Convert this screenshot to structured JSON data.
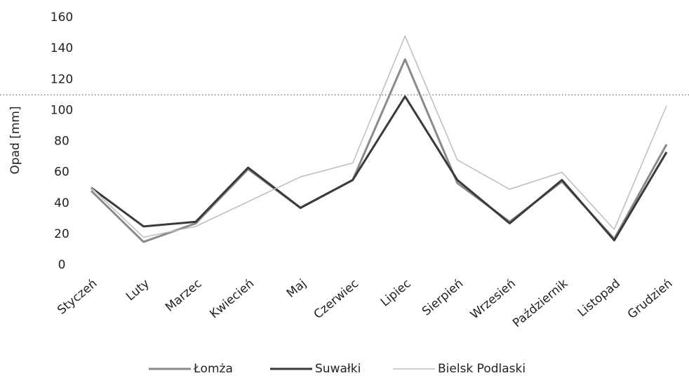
{
  "chart_data": {
    "type": "line",
    "y_label": "Opad [mm]",
    "categories": [
      "Styczeń",
      "Luty",
      "Marzec",
      "Kwiecień",
      "Maj",
      "Czerwiec",
      "Lipiec",
      "Sierpień",
      "Wrzesień",
      "Październik",
      "Listopad",
      "Grudzień"
    ],
    "series": [
      {
        "name": "Łomża",
        "color": "#8a8a8a",
        "values": [
          48,
          15,
          27,
          62,
          37,
          55,
          133,
          53,
          28,
          54,
          17,
          78
        ]
      },
      {
        "name": "Suwałki",
        "color": "#3a3a3a",
        "values": [
          50,
          25,
          28,
          63,
          37,
          55,
          109,
          55,
          27,
          55,
          16,
          73
        ]
      },
      {
        "name": "Bielsk Podlaski",
        "color": "#bdbdbd",
        "values": [
          50,
          18,
          25,
          41,
          57,
          66,
          148,
          68,
          49,
          60,
          23,
          103
        ]
      }
    ],
    "reference_line": 110,
    "ylim": [
      0,
      160
    ],
    "yticks": [
      0,
      20,
      40,
      60,
      80,
      100,
      120,
      140,
      160
    ],
    "legend": "bottom"
  }
}
